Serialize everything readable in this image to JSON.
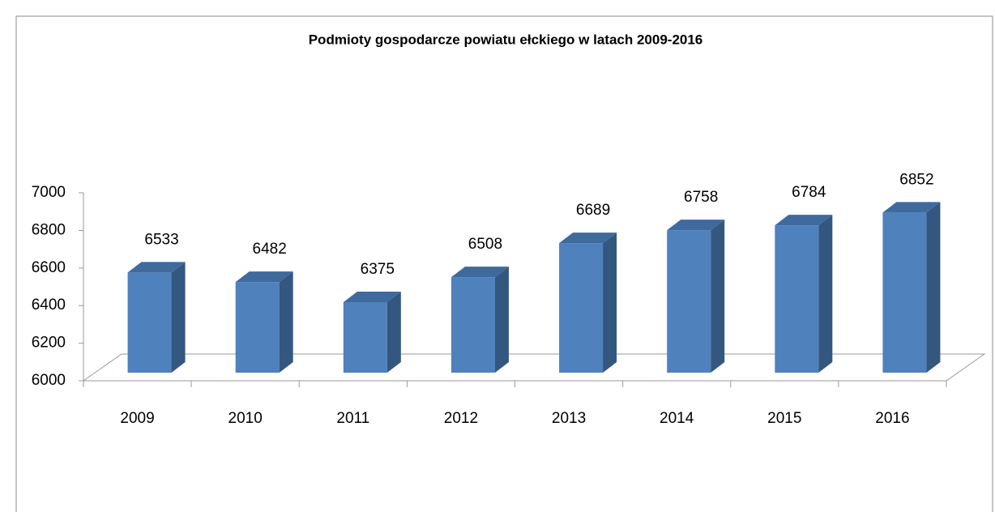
{
  "chart_data": {
    "type": "bar3d",
    "title": "Podmioty gospodarcze  powiatu ełckiego w latach 2009-2016",
    "categories": [
      "2009",
      "2010",
      "2011",
      "2012",
      "2013",
      "2014",
      "2015",
      "2016"
    ],
    "values": [
      6533,
      6482,
      6375,
      6508,
      6689,
      6758,
      6784,
      6852
    ],
    "color": "#4f81bd",
    "ylim": [
      6000,
      7000
    ],
    "yticks": [
      6000,
      6200,
      6400,
      6600,
      6800,
      7000
    ],
    "grid": false
  }
}
